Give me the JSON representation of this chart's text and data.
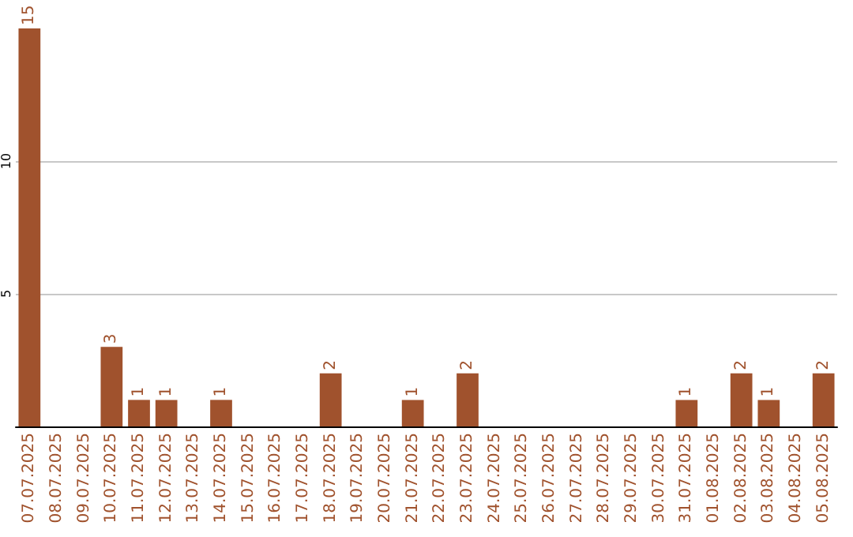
{
  "chart_data": {
    "type": "bar",
    "categories": [
      "07.07.2025",
      "08.07.2025",
      "09.07.2025",
      "10.07.2025",
      "11.07.2025",
      "12.07.2025",
      "13.07.2025",
      "14.07.2025",
      "15.07.2025",
      "16.07.2025",
      "17.07.2025",
      "18.07.2025",
      "19.07.2025",
      "20.07.2025",
      "21.07.2025",
      "22.07.2025",
      "23.07.2025",
      "24.07.2025",
      "25.07.2025",
      "26.07.2025",
      "27.07.2025",
      "28.07.2025",
      "29.07.2025",
      "30.07.2025",
      "31.07.2025",
      "01.08.2025",
      "02.08.2025",
      "03.08.2025",
      "04.08.2025",
      "05.08.2025"
    ],
    "values": [
      15,
      0,
      0,
      3,
      1,
      1,
      0,
      1,
      0,
      0,
      0,
      2,
      0,
      0,
      1,
      0,
      2,
      0,
      0,
      0,
      0,
      0,
      0,
      0,
      1,
      0,
      2,
      1,
      0,
      2
    ],
    "value_labels": [
      "15",
      null,
      null,
      "3",
      "1",
      "1",
      null,
      "1",
      null,
      null,
      null,
      "2",
      null,
      null,
      "1",
      null,
      "2",
      null,
      null,
      null,
      null,
      null,
      null,
      null,
      "1",
      null,
      "2",
      "1",
      null,
      "2"
    ],
    "color": "#a0522d",
    "ylim": [
      0,
      15
    ],
    "yticks": [
      5,
      10
    ],
    "grid": "y"
  }
}
